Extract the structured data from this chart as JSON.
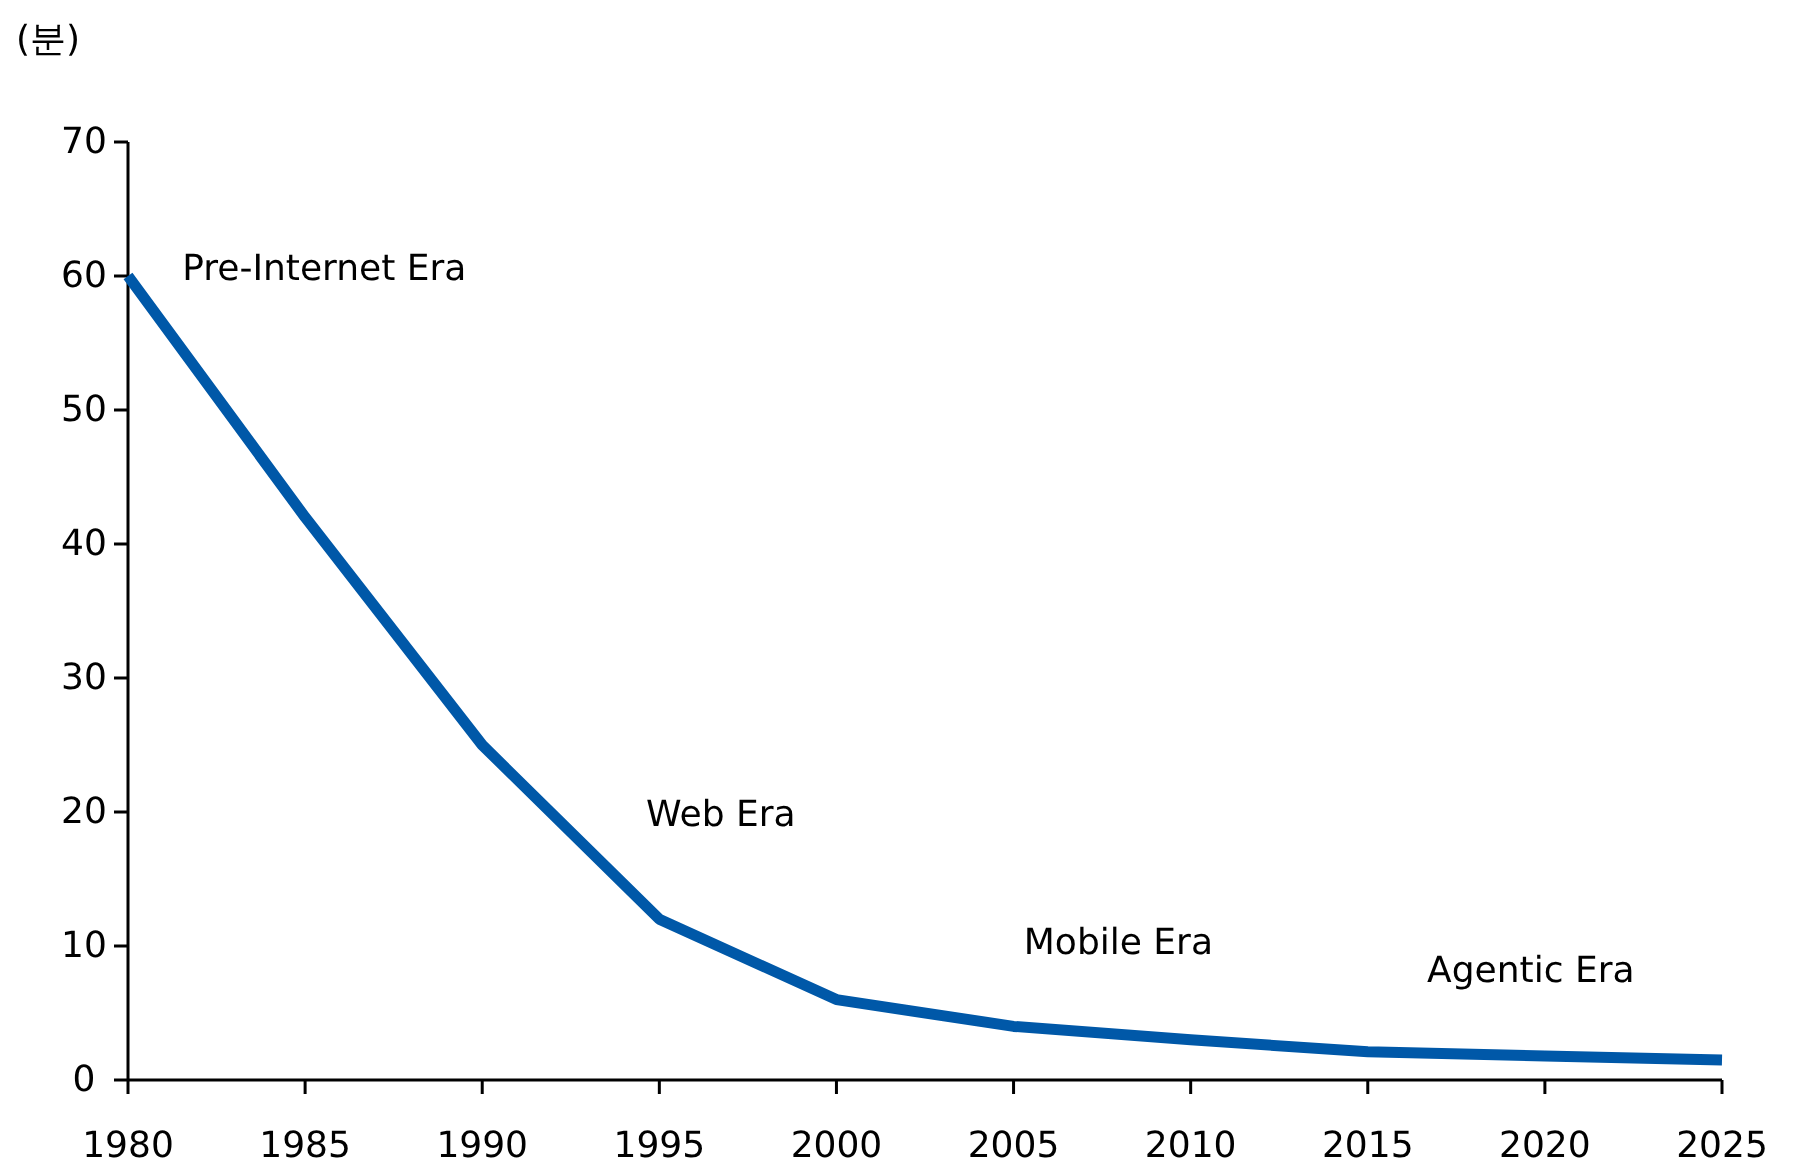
{
  "chart_data": {
    "type": "line",
    "ylabel": "(분)",
    "x": [
      1980,
      1985,
      1990,
      1995,
      2000,
      2005,
      2010,
      2015,
      2020,
      2025
    ],
    "series": [
      {
        "color": "#0058a8",
        "values": [
          60,
          42,
          25,
          12,
          6,
          4,
          3,
          2.1,
          1.8,
          1.5
        ]
      }
    ],
    "xlim": [
      1980,
      2025
    ],
    "xticks": [
      1980,
      1985,
      1990,
      1995,
      2000,
      2005,
      2010,
      2015,
      2020,
      2025
    ],
    "ylim": [
      0,
      70
    ],
    "yticks": [
      0,
      10,
      20,
      30,
      40,
      50,
      60,
      70
    ],
    "grid": false,
    "marker": "none",
    "line_style": "solid",
    "annotations": [
      "Pre-Internet Era",
      "Web Era",
      "Mobile Era",
      "Agentic Era"
    ]
  }
}
